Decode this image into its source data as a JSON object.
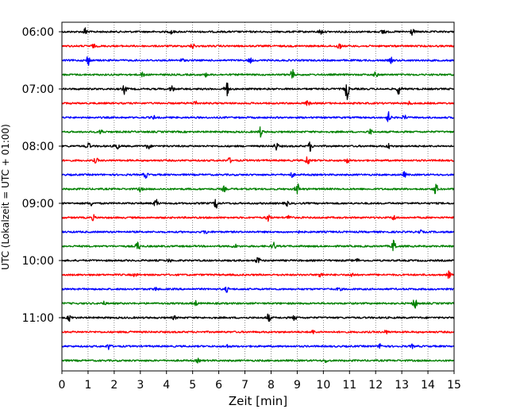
{
  "chart_data": {
    "type": "line",
    "title": "",
    "xlabel": "Zeit  [min]",
    "ylabel": "UTC (Lokalzeit = UTC + 01:00)",
    "xlim": [
      0,
      15
    ],
    "x_ticks": [
      0,
      1,
      2,
      3,
      4,
      5,
      6,
      7,
      8,
      9,
      10,
      11,
      12,
      13,
      14,
      15
    ],
    "y_tick_labels": [
      "06:00",
      "07:00",
      "08:00",
      "09:00",
      "10:00",
      "11:00"
    ],
    "grid": {
      "x": true,
      "y": false,
      "style": "dotted"
    },
    "trace_colors": [
      "#000000",
      "#ff0000",
      "#0000ff",
      "#008000"
    ],
    "traces": [
      {
        "start": "06:00",
        "color": "#000000",
        "events": [
          [
            0.9,
            5
          ],
          [
            12.3,
            4
          ],
          [
            13.4,
            4
          ],
          [
            4.2,
            3
          ],
          [
            9.9,
            3
          ]
        ]
      },
      {
        "start": "06:15",
        "color": "#ff0000",
        "events": [
          [
            10.6,
            4
          ],
          [
            5.0,
            3
          ],
          [
            1.2,
            2
          ]
        ]
      },
      {
        "start": "06:30",
        "color": "#0000ff",
        "events": [
          [
            1.0,
            6
          ],
          [
            7.2,
            3
          ],
          [
            12.6,
            3
          ],
          [
            4.6,
            2
          ]
        ]
      },
      {
        "start": "06:45",
        "color": "#008000",
        "events": [
          [
            8.8,
            7
          ],
          [
            3.1,
            3
          ],
          [
            12.0,
            3
          ],
          [
            5.5,
            2
          ]
        ]
      },
      {
        "start": "07:00",
        "color": "#000000",
        "events": [
          [
            6.3,
            12
          ],
          [
            10.9,
            13
          ],
          [
            12.9,
            8
          ],
          [
            2.4,
            6
          ],
          [
            4.2,
            4
          ]
        ]
      },
      {
        "start": "07:15",
        "color": "#ff0000",
        "events": [
          [
            5.1,
            3
          ],
          [
            9.4,
            3
          ],
          [
            13.3,
            2
          ]
        ]
      },
      {
        "start": "07:30",
        "color": "#0000ff",
        "events": [
          [
            12.5,
            7
          ],
          [
            13.1,
            3
          ],
          [
            3.5,
            2
          ]
        ]
      },
      {
        "start": "07:45",
        "color": "#008000",
        "events": [
          [
            7.6,
            6
          ],
          [
            1.5,
            3
          ],
          [
            11.8,
            3
          ]
        ]
      },
      {
        "start": "08:00",
        "color": "#000000",
        "events": [
          [
            1.0,
            5
          ],
          [
            2.1,
            5
          ],
          [
            3.3,
            4
          ],
          [
            8.2,
            5
          ],
          [
            9.5,
            6
          ],
          [
            12.5,
            3
          ]
        ]
      },
      {
        "start": "08:15",
        "color": "#ff0000",
        "events": [
          [
            1.3,
            3
          ],
          [
            9.4,
            6
          ],
          [
            6.4,
            3
          ],
          [
            10.9,
            3
          ]
        ]
      },
      {
        "start": "08:30",
        "color": "#0000ff",
        "events": [
          [
            3.2,
            4
          ],
          [
            8.8,
            3
          ],
          [
            13.1,
            3
          ]
        ]
      },
      {
        "start": "08:45",
        "color": "#008000",
        "events": [
          [
            9.0,
            8
          ],
          [
            14.3,
            7
          ],
          [
            3.0,
            3
          ],
          [
            6.2,
            3
          ]
        ]
      },
      {
        "start": "09:00",
        "color": "#000000",
        "events": [
          [
            5.9,
            7
          ],
          [
            3.6,
            5
          ],
          [
            1.1,
            3
          ],
          [
            8.6,
            3
          ]
        ]
      },
      {
        "start": "09:15",
        "color": "#ff0000",
        "events": [
          [
            7.9,
            5
          ],
          [
            8.7,
            4
          ],
          [
            1.2,
            3
          ],
          [
            12.7,
            3
          ]
        ]
      },
      {
        "start": "09:30",
        "color": "#0000ff",
        "events": [
          [
            5.5,
            2
          ],
          [
            9.0,
            2
          ],
          [
            13.7,
            2
          ]
        ]
      },
      {
        "start": "09:45",
        "color": "#008000",
        "events": [
          [
            12.7,
            9
          ],
          [
            2.9,
            6
          ],
          [
            8.1,
            5
          ],
          [
            6.6,
            3
          ]
        ]
      },
      {
        "start": "10:00",
        "color": "#000000",
        "events": [
          [
            7.5,
            5
          ],
          [
            4.1,
            2
          ],
          [
            11.3,
            2
          ]
        ]
      },
      {
        "start": "10:15",
        "color": "#ff0000",
        "events": [
          [
            9.9,
            4
          ],
          [
            11.1,
            3
          ],
          [
            14.8,
            4
          ],
          [
            2.8,
            2
          ]
        ]
      },
      {
        "start": "10:30",
        "color": "#0000ff",
        "events": [
          [
            6.3,
            3
          ],
          [
            10.6,
            2
          ],
          [
            3.6,
            2
          ]
        ]
      },
      {
        "start": "10:45",
        "color": "#008000",
        "events": [
          [
            13.5,
            7
          ],
          [
            5.1,
            3
          ],
          [
            1.6,
            2
          ]
        ]
      },
      {
        "start": "11:00",
        "color": "#000000",
        "events": [
          [
            0.3,
            4
          ],
          [
            7.9,
            5
          ],
          [
            8.9,
            3
          ],
          [
            4.3,
            2
          ]
        ]
      },
      {
        "start": "11:15",
        "color": "#ff0000",
        "events": [
          [
            2.6,
            2
          ],
          [
            9.6,
            2
          ],
          [
            12.4,
            2
          ]
        ]
      },
      {
        "start": "11:30",
        "color": "#0000ff",
        "events": [
          [
            1.8,
            4
          ],
          [
            12.2,
            4
          ],
          [
            13.4,
            2
          ],
          [
            6.3,
            2
          ]
        ]
      },
      {
        "start": "11:45",
        "color": "#008000",
        "events": [
          [
            5.2,
            2
          ],
          [
            10.1,
            2
          ]
        ]
      }
    ]
  }
}
